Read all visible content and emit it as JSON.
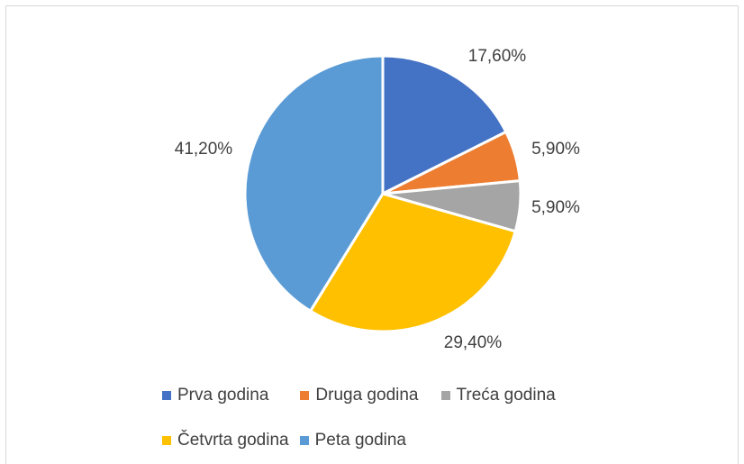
{
  "chart_data": {
    "type": "pie",
    "categories": [
      "Prva godina",
      "Druga godina",
      "Treća godina",
      "Četvrta godina",
      "Peta godina"
    ],
    "values": [
      17.6,
      5.9,
      5.9,
      29.4,
      41.2
    ],
    "data_labels": [
      "17,60%",
      "5,90%",
      "5,90%",
      "29,40%",
      "41,20%"
    ],
    "colors": [
      "#4472C4",
      "#ED7D31",
      "#A5A5A5",
      "#FFC000",
      "#5B9BD5"
    ],
    "title": "",
    "legend_position": "bottom"
  },
  "legend": {
    "items": [
      {
        "label": "Prva godina",
        "color": "#4472C4"
      },
      {
        "label": "Druga godina",
        "color": "#ED7D31"
      },
      {
        "label": "Treća godina",
        "color": "#A5A5A5"
      },
      {
        "label": "Četvrta godina",
        "color": "#FFC000"
      },
      {
        "label": "Peta godina",
        "color": "#5B9BD5"
      }
    ]
  }
}
